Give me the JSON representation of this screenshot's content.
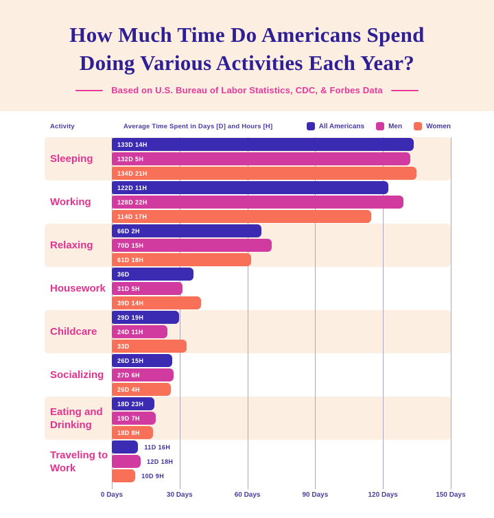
{
  "header": {
    "title_line1": "How Much Time Do Americans Spend",
    "title_line2": "Doing Various Activities Each Year?",
    "subtitle": "Based on U.S. Bureau of Labor Statistics, CDC, & Forbes Data"
  },
  "columns": {
    "activity": "Activity",
    "values": "Average Time Spent in Days [D] and Hours [H]"
  },
  "colors": {
    "header_bg": "#fdeee2",
    "band_peach": "#fdeee2",
    "title_indigo": "#2e2094",
    "pink": "#e8399b",
    "gridline": "#aba4bd",
    "axis_text": "#4b3f9c",
    "all_americans": "#3a2bb2",
    "men": "#d13a9f",
    "women": "#f97058"
  },
  "chart_data": {
    "type": "bar",
    "orientation": "horizontal",
    "title": "How Much Time Do Americans Spend Doing Various Activities Each Year?",
    "xlabel": "Days",
    "xlim": [
      0,
      150
    ],
    "tick_interval_days": 30,
    "tick_labels": [
      "0 Days",
      "30 Days",
      "60 Days",
      "90 Days",
      "120 Days",
      "150 Days"
    ],
    "legend_position": "top-right",
    "grid": true,
    "series": [
      {
        "name": "All Americans",
        "color": "#3a2bb2"
      },
      {
        "name": "Men",
        "color": "#d13a9f"
      },
      {
        "name": "Women",
        "color": "#f97058"
      }
    ],
    "activities": [
      {
        "label": "Sleeping",
        "values": [
          {
            "text": "133D 14H",
            "days": 133,
            "hours": 14
          },
          {
            "text": "132D 5H",
            "days": 132,
            "hours": 5
          },
          {
            "text": "134D 21H",
            "days": 134,
            "hours": 21
          }
        ]
      },
      {
        "label": "Working",
        "values": [
          {
            "text": "122D 11H",
            "days": 122,
            "hours": 11
          },
          {
            "text": "128D 22H",
            "days": 128,
            "hours": 22
          },
          {
            "text": "114D 17H",
            "days": 114,
            "hours": 17
          }
        ]
      },
      {
        "label": "Relaxing",
        "values": [
          {
            "text": "66D 2H",
            "days": 66,
            "hours": 2
          },
          {
            "text": "70D 15H",
            "days": 70,
            "hours": 15
          },
          {
            "text": "61D 18H",
            "days": 61,
            "hours": 18
          }
        ]
      },
      {
        "label": "Housework",
        "values": [
          {
            "text": "36D",
            "days": 36,
            "hours": 0
          },
          {
            "text": "31D 5H",
            "days": 31,
            "hours": 5
          },
          {
            "text": "39D 14H",
            "days": 39,
            "hours": 14
          }
        ]
      },
      {
        "label": "Childcare",
        "values": [
          {
            "text": "29D 19H",
            "days": 29,
            "hours": 19
          },
          {
            "text": "24D 11H",
            "days": 24,
            "hours": 11
          },
          {
            "text": "33D",
            "days": 33,
            "hours": 0
          }
        ]
      },
      {
        "label": "Socializing",
        "values": [
          {
            "text": "26D 15H",
            "days": 26,
            "hours": 15
          },
          {
            "text": "27D 6H",
            "days": 27,
            "hours": 6
          },
          {
            "text": "26D 4H",
            "days": 26,
            "hours": 4
          }
        ]
      },
      {
        "label": "Eating and Drinking",
        "values": [
          {
            "text": "18D 23H",
            "days": 18,
            "hours": 23
          },
          {
            "text": "19D 7H",
            "days": 19,
            "hours": 7
          },
          {
            "text": "18D 8H",
            "days": 18,
            "hours": 8
          }
        ]
      },
      {
        "label": "Traveling to Work",
        "labels_outside": true,
        "values": [
          {
            "text": "11D 16H",
            "days": 11,
            "hours": 16
          },
          {
            "text": "12D 18H",
            "days": 12,
            "hours": 18
          },
          {
            "text": "10D 9H",
            "days": 10,
            "hours": 9
          }
        ]
      }
    ]
  }
}
